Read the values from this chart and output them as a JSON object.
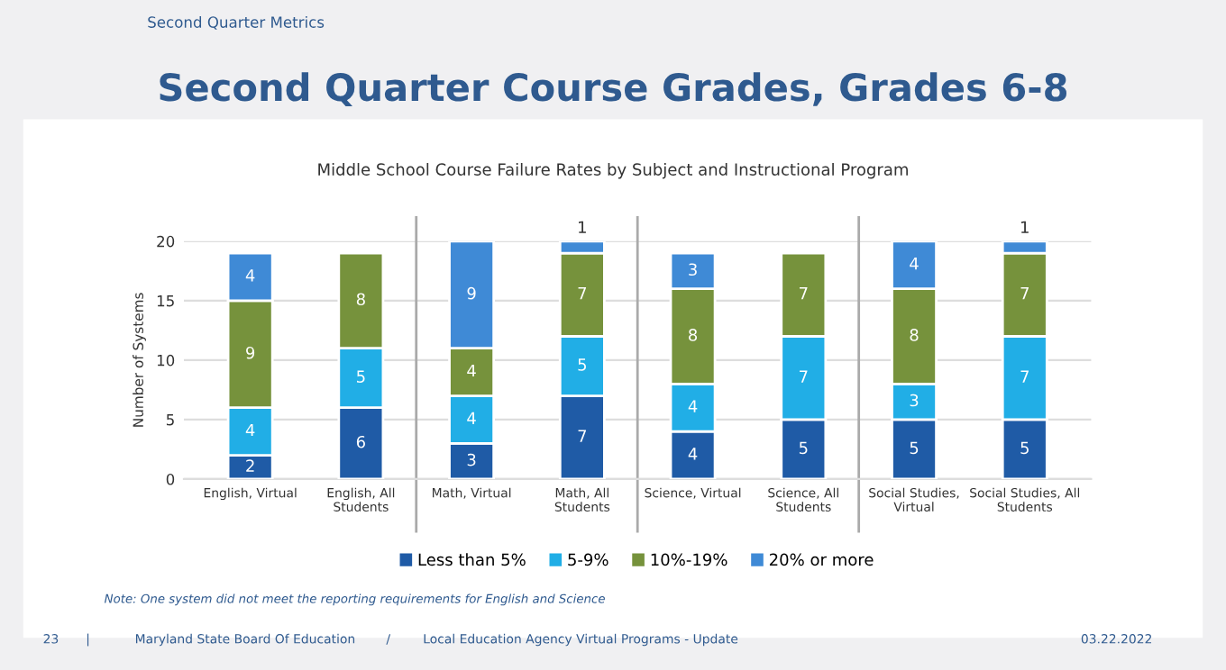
{
  "chart_data": {
    "type": "bar",
    "stacked": true,
    "title": "Second Quarter Course Grades, Grades 6-8",
    "subtitle": "Middle School Course Failure Rates by Subject and Instructional Program",
    "ylabel": "Number of Systems",
    "categories": [
      "English, Virtual",
      "English, All\nStudents",
      "Math, Virtual",
      "Math, All\nStudents",
      "Science, Virtual",
      "Science, All\nStudents",
      "Social Studies,\nVirtual",
      "Social Studies, All\nStudents"
    ],
    "series": [
      {
        "name": "Less than 5%",
        "color": "#1f5ba6",
        "values": [
          2,
          6,
          3,
          7,
          4,
          5,
          5,
          5
        ],
        "value_labels": [
          "2",
          "6",
          "3",
          "7",
          "4",
          "5",
          "5",
          "5"
        ]
      },
      {
        "name": "5-9%",
        "color": "#21aee6",
        "values": [
          4,
          5,
          4,
          5,
          4,
          7,
          3,
          7
        ],
        "value_labels": [
          "4",
          "5",
          "4",
          "5",
          "4",
          "7",
          "3",
          "7"
        ]
      },
      {
        "name": "10%-19%",
        "color": "#76923c",
        "values": [
          9,
          8,
          4,
          7,
          8,
          7,
          8,
          7
        ],
        "value_labels": [
          "9",
          "8",
          "4",
          "7",
          "8",
          "7",
          "8",
          "7"
        ]
      },
      {
        "name": "20% or more",
        "color": "#3f8ad6",
        "values": [
          4,
          null,
          9,
          1,
          3,
          null,
          4,
          1
        ],
        "value_labels": [
          "4",
          null,
          "9",
          "1",
          "3",
          null,
          "4",
          "1"
        ]
      }
    ],
    "ylim": [
      0,
      20
    ],
    "yticks": [
      0,
      5,
      10,
      15,
      20
    ],
    "grid": "y",
    "legend": "bottom",
    "annotations": [
      "Second Quarter Metrics",
      "Note: One system did not meet the reporting requirements for English and Science",
      "23",
      "|",
      "Maryland State Board Of Education",
      "/",
      "Local Education Agency Virtual Programs - Update",
      "03.22.2022"
    ]
  }
}
